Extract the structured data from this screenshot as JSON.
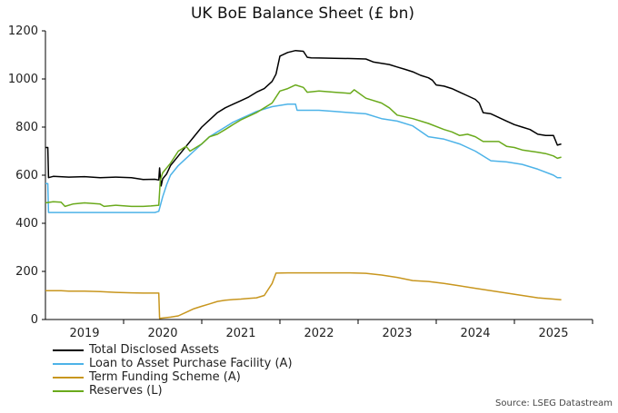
{
  "chart_data": {
    "type": "line",
    "title": "UK BoE Balance Sheet (£ bn)",
    "xlabel": "",
    "ylabel": "",
    "xlim": [
      2018.5,
      2025.5
    ],
    "ylim": [
      0,
      1200
    ],
    "yticks": [
      0,
      200,
      400,
      600,
      800,
      1000,
      1200
    ],
    "xtick_labels": [
      {
        "label": "2019",
        "x": 2019.0
      },
      {
        "label": "2020",
        "x": 2020.0
      },
      {
        "label": "2021",
        "x": 2021.0
      },
      {
        "label": "2022",
        "x": 2022.0
      },
      {
        "label": "2023",
        "x": 2023.0
      },
      {
        "label": "2024",
        "x": 2024.0
      },
      {
        "label": "2025",
        "x": 2025.0
      }
    ],
    "year_boundaries": [
      2019.5,
      2020.5,
      2021.5,
      2022.5,
      2023.5,
      2024.5,
      2025.5
    ],
    "series": [
      {
        "name": "Total Disclosed Assets",
        "color": "#000000",
        "points": [
          [
            2018.5,
            715
          ],
          [
            2018.53,
            715
          ],
          [
            2018.54,
            590
          ],
          [
            2018.6,
            595
          ],
          [
            2018.8,
            592
          ],
          [
            2019.0,
            594
          ],
          [
            2019.2,
            590
          ],
          [
            2019.4,
            592
          ],
          [
            2019.6,
            590
          ],
          [
            2019.75,
            582
          ],
          [
            2019.9,
            583
          ],
          [
            2019.95,
            580
          ],
          [
            2019.96,
            630
          ],
          [
            2019.98,
            555
          ],
          [
            2020.0,
            585
          ],
          [
            2020.05,
            605
          ],
          [
            2020.1,
            640
          ],
          [
            2020.2,
            680
          ],
          [
            2020.3,
            720
          ],
          [
            2020.4,
            760
          ],
          [
            2020.5,
            800
          ],
          [
            2020.6,
            830
          ],
          [
            2020.7,
            860
          ],
          [
            2020.8,
            880
          ],
          [
            2020.9,
            895
          ],
          [
            2021.0,
            910
          ],
          [
            2021.1,
            925
          ],
          [
            2021.2,
            945
          ],
          [
            2021.3,
            960
          ],
          [
            2021.4,
            990
          ],
          [
            2021.45,
            1020
          ],
          [
            2021.5,
            1095
          ],
          [
            2021.6,
            1110
          ],
          [
            2021.7,
            1118
          ],
          [
            2021.8,
            1115
          ],
          [
            2021.85,
            1090
          ],
          [
            2021.9,
            1088
          ],
          [
            2022.0,
            1087
          ],
          [
            2022.2,
            1086
          ],
          [
            2022.4,
            1085
          ],
          [
            2022.6,
            1083
          ],
          [
            2022.7,
            1070
          ],
          [
            2022.8,
            1065
          ],
          [
            2022.9,
            1060
          ],
          [
            2023.0,
            1050
          ],
          [
            2023.1,
            1040
          ],
          [
            2023.2,
            1030
          ],
          [
            2023.3,
            1015
          ],
          [
            2023.4,
            1005
          ],
          [
            2023.45,
            995
          ],
          [
            2023.5,
            975
          ],
          [
            2023.6,
            970
          ],
          [
            2023.7,
            960
          ],
          [
            2023.8,
            945
          ],
          [
            2023.9,
            930
          ],
          [
            2024.0,
            915
          ],
          [
            2024.05,
            900
          ],
          [
            2024.1,
            860
          ],
          [
            2024.2,
            855
          ],
          [
            2024.3,
            840
          ],
          [
            2024.4,
            825
          ],
          [
            2024.5,
            810
          ],
          [
            2024.6,
            800
          ],
          [
            2024.7,
            790
          ],
          [
            2024.8,
            770
          ],
          [
            2024.9,
            765
          ],
          [
            2025.0,
            765
          ],
          [
            2025.05,
            725
          ],
          [
            2025.1,
            730
          ]
        ]
      },
      {
        "name": "Loan to Asset Purchase Facility (A)",
        "color": "#4db3e8",
        "points": [
          [
            2018.5,
            565
          ],
          [
            2018.53,
            565
          ],
          [
            2018.54,
            445
          ],
          [
            2019.0,
            445
          ],
          [
            2019.5,
            445
          ],
          [
            2019.9,
            445
          ],
          [
            2019.95,
            450
          ],
          [
            2020.0,
            510
          ],
          [
            2020.05,
            560
          ],
          [
            2020.1,
            600
          ],
          [
            2020.2,
            640
          ],
          [
            2020.3,
            670
          ],
          [
            2020.4,
            700
          ],
          [
            2020.5,
            730
          ],
          [
            2020.6,
            760
          ],
          [
            2020.7,
            780
          ],
          [
            2020.8,
            800
          ],
          [
            2020.9,
            820
          ],
          [
            2021.0,
            835
          ],
          [
            2021.1,
            850
          ],
          [
            2021.2,
            865
          ],
          [
            2021.3,
            875
          ],
          [
            2021.4,
            885
          ],
          [
            2021.5,
            890
          ],
          [
            2021.6,
            895
          ],
          [
            2021.7,
            895
          ],
          [
            2021.72,
            870
          ],
          [
            2022.0,
            870
          ],
          [
            2022.2,
            865
          ],
          [
            2022.4,
            860
          ],
          [
            2022.6,
            855
          ],
          [
            2022.8,
            835
          ],
          [
            2023.0,
            825
          ],
          [
            2023.2,
            805
          ],
          [
            2023.4,
            760
          ],
          [
            2023.6,
            750
          ],
          [
            2023.8,
            730
          ],
          [
            2024.0,
            700
          ],
          [
            2024.2,
            660
          ],
          [
            2024.4,
            655
          ],
          [
            2024.6,
            645
          ],
          [
            2024.8,
            625
          ],
          [
            2025.0,
            600
          ],
          [
            2025.05,
            590
          ],
          [
            2025.1,
            590
          ]
        ]
      },
      {
        "name": "Term Funding Scheme (A)",
        "color": "#c8961e",
        "points": [
          [
            2018.5,
            120
          ],
          [
            2018.7,
            120
          ],
          [
            2018.8,
            118
          ],
          [
            2019.0,
            118
          ],
          [
            2019.2,
            116
          ],
          [
            2019.4,
            113
          ],
          [
            2019.6,
            111
          ],
          [
            2019.75,
            110
          ],
          [
            2019.95,
            110
          ],
          [
            2019.96,
            5
          ],
          [
            2020.1,
            10
          ],
          [
            2020.2,
            15
          ],
          [
            2020.3,
            30
          ],
          [
            2020.4,
            45
          ],
          [
            2020.5,
            55
          ],
          [
            2020.6,
            65
          ],
          [
            2020.7,
            75
          ],
          [
            2020.8,
            80
          ],
          [
            2020.9,
            83
          ],
          [
            2021.0,
            85
          ],
          [
            2021.1,
            88
          ],
          [
            2021.2,
            90
          ],
          [
            2021.3,
            100
          ],
          [
            2021.4,
            150
          ],
          [
            2021.45,
            193
          ],
          [
            2021.6,
            194
          ],
          [
            2022.0,
            194
          ],
          [
            2022.4,
            194
          ],
          [
            2022.6,
            192
          ],
          [
            2022.8,
            185
          ],
          [
            2023.0,
            175
          ],
          [
            2023.2,
            162
          ],
          [
            2023.4,
            158
          ],
          [
            2023.6,
            150
          ],
          [
            2023.8,
            140
          ],
          [
            2024.0,
            130
          ],
          [
            2024.2,
            120
          ],
          [
            2024.4,
            110
          ],
          [
            2024.6,
            100
          ],
          [
            2024.8,
            90
          ],
          [
            2025.0,
            85
          ],
          [
            2025.1,
            82
          ]
        ]
      },
      {
        "name": "Reserves (L)",
        "color": "#6aaa1c",
        "points": [
          [
            2018.5,
            485
          ],
          [
            2018.6,
            490
          ],
          [
            2018.7,
            488
          ],
          [
            2018.75,
            470
          ],
          [
            2018.85,
            480
          ],
          [
            2019.0,
            485
          ],
          [
            2019.2,
            480
          ],
          [
            2019.25,
            470
          ],
          [
            2019.4,
            475
          ],
          [
            2019.6,
            470
          ],
          [
            2019.75,
            470
          ],
          [
            2019.85,
            472
          ],
          [
            2019.95,
            475
          ],
          [
            2019.97,
            580
          ],
          [
            2020.0,
            610
          ],
          [
            2020.1,
            650
          ],
          [
            2020.2,
            700
          ],
          [
            2020.3,
            720
          ],
          [
            2020.35,
            700
          ],
          [
            2020.5,
            730
          ],
          [
            2020.6,
            760
          ],
          [
            2020.7,
            770
          ],
          [
            2020.8,
            790
          ],
          [
            2020.9,
            810
          ],
          [
            2021.0,
            830
          ],
          [
            2021.1,
            845
          ],
          [
            2021.2,
            860
          ],
          [
            2021.3,
            880
          ],
          [
            2021.4,
            900
          ],
          [
            2021.5,
            950
          ],
          [
            2021.6,
            960
          ],
          [
            2021.7,
            975
          ],
          [
            2021.8,
            965
          ],
          [
            2021.85,
            945
          ],
          [
            2022.0,
            950
          ],
          [
            2022.2,
            945
          ],
          [
            2022.4,
            940
          ],
          [
            2022.45,
            955
          ],
          [
            2022.6,
            920
          ],
          [
            2022.8,
            900
          ],
          [
            2022.9,
            880
          ],
          [
            2023.0,
            850
          ],
          [
            2023.2,
            835
          ],
          [
            2023.4,
            815
          ],
          [
            2023.6,
            790
          ],
          [
            2023.7,
            780
          ],
          [
            2023.8,
            765
          ],
          [
            2023.9,
            770
          ],
          [
            2024.0,
            760
          ],
          [
            2024.1,
            740
          ],
          [
            2024.2,
            740
          ],
          [
            2024.3,
            740
          ],
          [
            2024.4,
            720
          ],
          [
            2024.5,
            715
          ],
          [
            2024.6,
            705
          ],
          [
            2024.7,
            700
          ],
          [
            2024.8,
            695
          ],
          [
            2024.9,
            690
          ],
          [
            2025.0,
            680
          ],
          [
            2025.05,
            670
          ],
          [
            2025.1,
            675
          ]
        ]
      }
    ],
    "legend": [
      {
        "label": "Total Disclosed Assets",
        "color": "#000000"
      },
      {
        "label": "Loan to Asset Purchase Facility (A)",
        "color": "#4db3e8"
      },
      {
        "label": "Term Funding Scheme (A)",
        "color": "#c8961e"
      },
      {
        "label": "Reserves (L)",
        "color": "#6aaa1c"
      }
    ],
    "source": "Source: LSEG Datastream"
  }
}
